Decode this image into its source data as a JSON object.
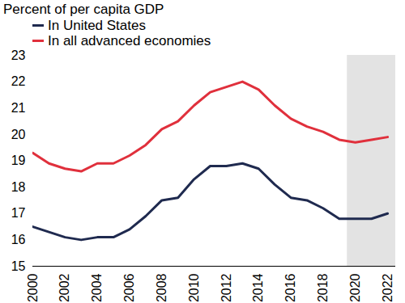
{
  "chart_data": {
    "type": "line",
    "title": "Percent of per capita GDP",
    "x": [
      2000,
      2001,
      2002,
      2003,
      2004,
      2005,
      2006,
      2007,
      2008,
      2009,
      2010,
      2011,
      2012,
      2013,
      2014,
      2015,
      2016,
      2017,
      2018,
      2019,
      2020,
      2021,
      2022
    ],
    "series": [
      {
        "name": "In United States",
        "color": "#1f2a4f",
        "values": [
          16.5,
          16.3,
          16.1,
          16.0,
          16.1,
          16.1,
          16.4,
          16.9,
          17.5,
          17.6,
          18.3,
          18.8,
          18.8,
          18.9,
          18.7,
          18.1,
          17.6,
          17.5,
          17.2,
          16.8,
          16.8,
          16.8,
          17.0
        ]
      },
      {
        "name": "In all advanced economies",
        "color": "#e0303c",
        "values": [
          19.3,
          18.9,
          18.7,
          18.6,
          18.9,
          18.9,
          19.2,
          19.6,
          20.2,
          20.5,
          21.1,
          21.6,
          21.8,
          22.0,
          21.7,
          21.1,
          20.6,
          20.3,
          20.1,
          19.8,
          19.7,
          19.8,
          19.9
        ]
      }
    ],
    "xlim": [
      2000,
      2022.5
    ],
    "xticks": [
      2000,
      2002,
      2004,
      2006,
      2008,
      2010,
      2012,
      2014,
      2016,
      2018,
      2020,
      2022
    ],
    "ylim": [
      15,
      23
    ],
    "yticks": [
      15,
      16,
      17,
      18,
      19,
      20,
      21,
      22,
      23
    ],
    "shaded_x": [
      2019.5,
      2022.5
    ],
    "grid": false,
    "legend": "top-left"
  }
}
